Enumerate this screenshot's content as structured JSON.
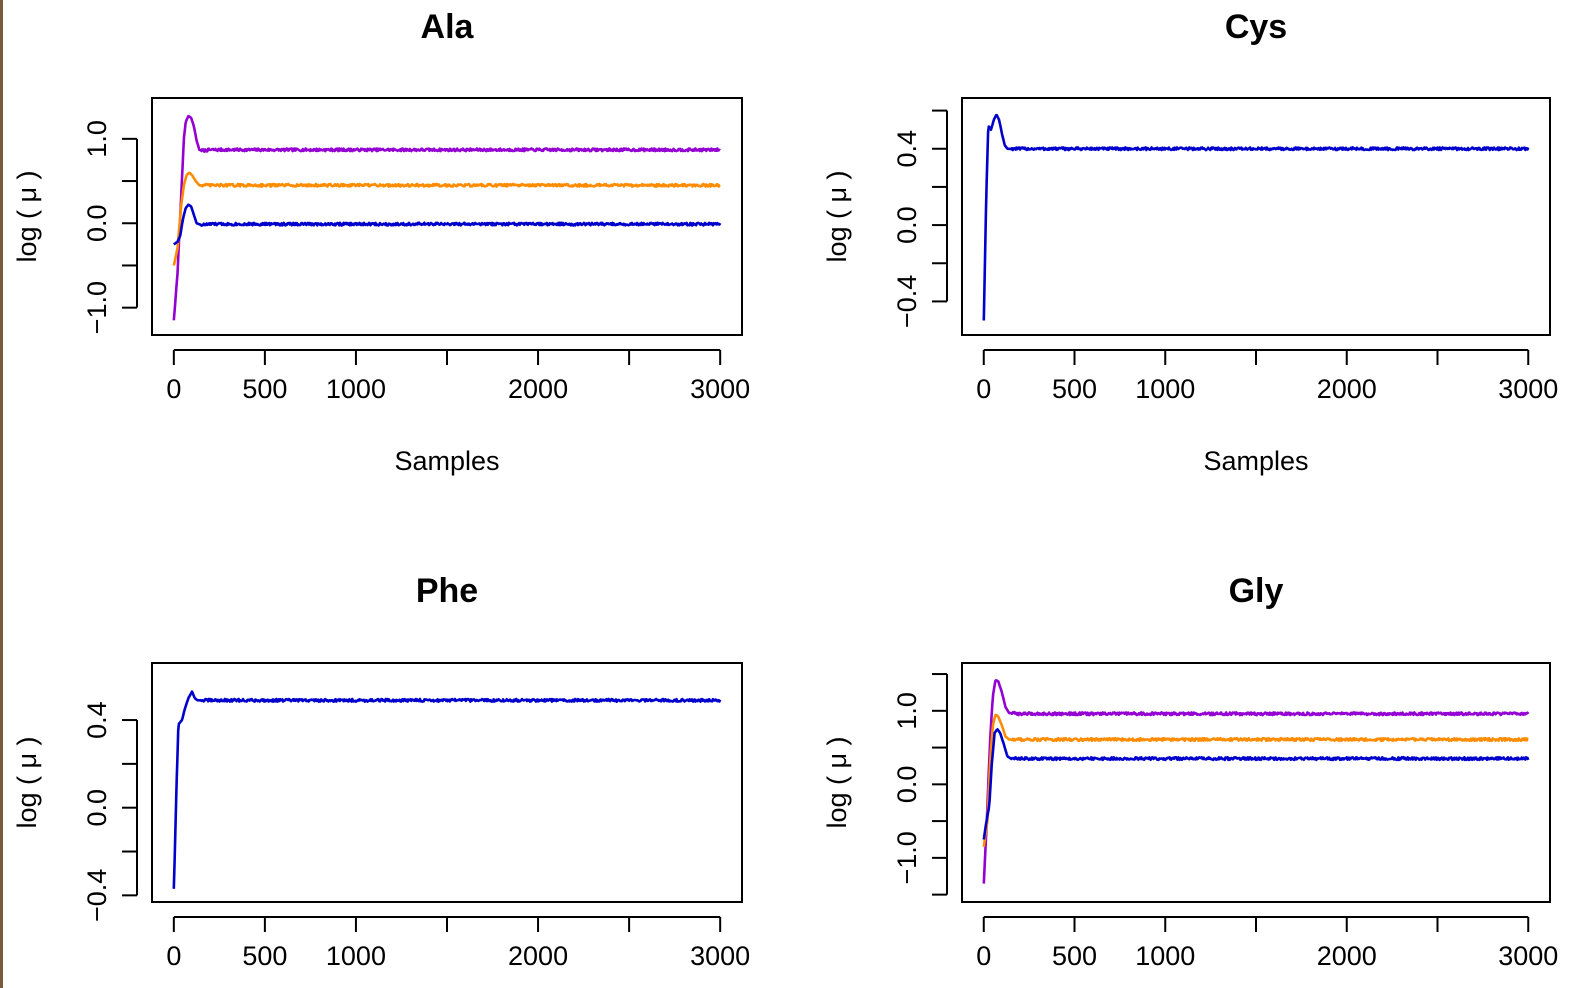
{
  "chart_data": [
    {
      "type": "line",
      "title": "Ala",
      "xlabel": "Samples",
      "ylabel": "log ( μ )",
      "xlim": [
        0,
        3000
      ],
      "ylim": [
        -1.22,
        1.38
      ],
      "x_ticks": [
        0,
        500,
        1000,
        1500,
        2000,
        2500,
        3000
      ],
      "x_tick_labels": [
        "0",
        "500",
        "1000",
        "",
        "2000",
        "",
        "3000"
      ],
      "y_ticks": [
        -1.0,
        -0.5,
        0.0,
        0.5,
        1.0
      ],
      "y_tick_labels": [
        "−1.0",
        "",
        "0.0",
        "",
        "1.0"
      ],
      "series": [
        {
          "color": "#9400d3",
          "values": [
            [
              0,
              -1.15
            ],
            [
              20,
              -0.6
            ],
            [
              40,
              0.3
            ],
            [
              55,
              1.0
            ],
            [
              65,
              1.2
            ],
            [
              80,
              1.27
            ],
            [
              95,
              1.25
            ],
            [
              110,
              1.15
            ],
            [
              125,
              0.98
            ],
            [
              140,
              0.87
            ],
            [
              160,
              0.86
            ],
            [
              200,
              0.87
            ],
            [
              3000,
              0.87
            ]
          ]
        },
        {
          "color": "#ff8c00",
          "values": [
            [
              0,
              -0.5
            ],
            [
              20,
              -0.3
            ],
            [
              40,
              0.2
            ],
            [
              55,
              0.45
            ],
            [
              70,
              0.57
            ],
            [
              85,
              0.6
            ],
            [
              100,
              0.57
            ],
            [
              120,
              0.5
            ],
            [
              140,
              0.45
            ],
            [
              200,
              0.45
            ],
            [
              3000,
              0.45
            ]
          ]
        },
        {
          "color": "#0000cd",
          "values": [
            [
              0,
              -0.25
            ],
            [
              20,
              -0.22
            ],
            [
              35,
              -0.15
            ],
            [
              50,
              0.05
            ],
            [
              65,
              0.18
            ],
            [
              80,
              0.22
            ],
            [
              95,
              0.2
            ],
            [
              110,
              0.1
            ],
            [
              125,
              0.0
            ],
            [
              150,
              -0.02
            ],
            [
              200,
              -0.01
            ],
            [
              3000,
              -0.01
            ]
          ]
        }
      ]
    },
    {
      "type": "line",
      "title": "Cys",
      "xlabel": "Samples",
      "ylabel": "log ( μ )",
      "xlim": [
        0,
        3000
      ],
      "ylim": [
        -0.53,
        0.62
      ],
      "x_ticks": [
        0,
        500,
        1000,
        1500,
        2000,
        2500,
        3000
      ],
      "x_tick_labels": [
        "0",
        "500",
        "1000",
        "",
        "2000",
        "",
        "3000"
      ],
      "y_ticks": [
        -0.4,
        -0.2,
        0.0,
        0.2,
        0.4,
        0.6
      ],
      "y_tick_labels": [
        "−0.4",
        "",
        "0.0",
        "",
        "0.4",
        ""
      ],
      "series": [
        {
          "color": "#0000cd",
          "values": [
            [
              0,
              -0.5
            ],
            [
              15,
              0.2
            ],
            [
              25,
              0.52
            ],
            [
              40,
              0.5
            ],
            [
              55,
              0.55
            ],
            [
              70,
              0.58
            ],
            [
              85,
              0.55
            ],
            [
              100,
              0.48
            ],
            [
              115,
              0.42
            ],
            [
              130,
              0.4
            ],
            [
              200,
              0.4
            ],
            [
              3000,
              0.4
            ]
          ]
        }
      ]
    },
    {
      "type": "line",
      "title": "Phe",
      "xlabel": "",
      "ylabel": "log ( μ )",
      "xlim": [
        0,
        3000
      ],
      "ylim": [
        -0.39,
        0.62
      ],
      "x_ticks": [
        0,
        500,
        1000,
        1500,
        2000,
        2500,
        3000
      ],
      "x_tick_labels": [
        "0",
        "500",
        "1000",
        "",
        "2000",
        "",
        "3000"
      ],
      "y_ticks": [
        -0.4,
        -0.2,
        0.0,
        0.2,
        0.4
      ],
      "y_tick_labels": [
        "−0.4",
        "",
        "0.0",
        "",
        "0.4"
      ],
      "series": [
        {
          "color": "#0000cd",
          "values": [
            [
              0,
              -0.37
            ],
            [
              15,
              0.1
            ],
            [
              25,
              0.38
            ],
            [
              45,
              0.4
            ],
            [
              60,
              0.45
            ],
            [
              80,
              0.5
            ],
            [
              100,
              0.53
            ],
            [
              115,
              0.5
            ],
            [
              130,
              0.49
            ],
            [
              200,
              0.49
            ],
            [
              3000,
              0.49
            ]
          ]
        }
      ]
    },
    {
      "type": "line",
      "title": "Gly",
      "xlabel": "",
      "ylabel": "log ( μ )",
      "xlim": [
        0,
        3000
      ],
      "ylim": [
        -1.48,
        1.53
      ],
      "x_ticks": [
        0,
        500,
        1000,
        1500,
        2000,
        2500,
        3000
      ],
      "x_tick_labels": [
        "0",
        "500",
        "1000",
        "",
        "2000",
        "",
        "3000"
      ],
      "y_ticks": [
        -1.5,
        -1.0,
        -0.5,
        0.0,
        0.5,
        1.0,
        1.5
      ],
      "y_tick_labels": [
        "",
        "−1.0",
        "",
        "0.0",
        "",
        "1.0",
        ""
      ],
      "series": [
        {
          "color": "#9400d3",
          "values": [
            [
              0,
              -1.35
            ],
            [
              15,
              -0.6
            ],
            [
              35,
              0.6
            ],
            [
              50,
              1.2
            ],
            [
              65,
              1.42
            ],
            [
              80,
              1.4
            ],
            [
              100,
              1.25
            ],
            [
              120,
              1.05
            ],
            [
              140,
              0.97
            ],
            [
              200,
              0.96
            ],
            [
              3000,
              0.96
            ]
          ]
        },
        {
          "color": "#ff8c00",
          "values": [
            [
              0,
              -0.85
            ],
            [
              20,
              -0.5
            ],
            [
              35,
              0.3
            ],
            [
              50,
              0.8
            ],
            [
              65,
              0.95
            ],
            [
              80,
              0.92
            ],
            [
              100,
              0.8
            ],
            [
              120,
              0.65
            ],
            [
              140,
              0.61
            ],
            [
              200,
              0.61
            ],
            [
              3000,
              0.61
            ]
          ]
        },
        {
          "color": "#0000cd",
          "values": [
            [
              0,
              -0.75
            ],
            [
              15,
              -0.5
            ],
            [
              30,
              -0.3
            ],
            [
              45,
              0.3
            ],
            [
              60,
              0.7
            ],
            [
              75,
              0.75
            ],
            [
              90,
              0.7
            ],
            [
              110,
              0.55
            ],
            [
              130,
              0.38
            ],
            [
              150,
              0.35
            ],
            [
              200,
              0.35
            ],
            [
              3000,
              0.35
            ]
          ]
        }
      ]
    }
  ]
}
